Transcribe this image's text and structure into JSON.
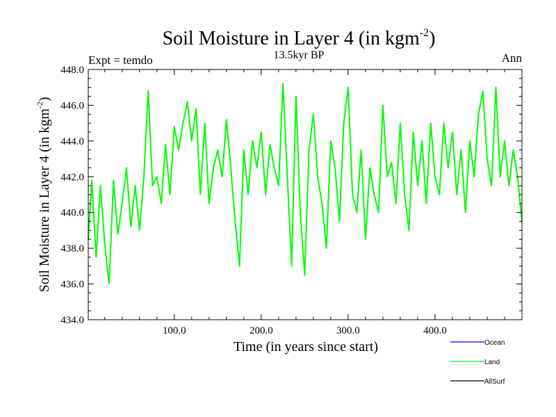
{
  "chart_data": {
    "type": "line",
    "title": "Soil Moisture in Layer 4 (in kgm",
    "title_sup": "-2",
    "title_close": ")",
    "subtitle": "13.5kyr BP",
    "left_label": "Expt = temdo",
    "right_label": "Ann",
    "xlabel": "Time (in years since start)",
    "ylabel": "Soil Moisture in Layer 4 (in kgm",
    "ylabel_sup": "-2",
    "ylabel_close": ")",
    "xlim": [
      1,
      500
    ],
    "ylim": [
      434.0,
      448.0
    ],
    "x_ticks": [
      100,
      200,
      300,
      400
    ],
    "x_tick_labels": [
      "100.0",
      "200.0",
      "300.0",
      "400.0"
    ],
    "y_ticks": [
      434,
      436,
      438,
      440,
      442,
      444,
      446,
      448
    ],
    "y_tick_labels": [
      "434.0",
      "436.0",
      "438.0",
      "440.0",
      "442.0",
      "444.0",
      "446.0",
      "448.0"
    ],
    "legend": [
      {
        "name": "Ocean",
        "color": "#0000ff"
      },
      {
        "name": "Land",
        "color": "#00ff00"
      },
      {
        "name": "AllSurf",
        "color": "#000000"
      }
    ],
    "series": [
      {
        "name": "Land",
        "color": "#00ff00",
        "x": [
          1,
          5,
          10,
          15,
          20,
          25,
          30,
          35,
          40,
          45,
          50,
          55,
          60,
          65,
          70,
          75,
          80,
          85,
          90,
          95,
          100,
          105,
          110,
          115,
          120,
          125,
          130,
          135,
          140,
          145,
          150,
          155,
          160,
          165,
          170,
          175,
          180,
          185,
          190,
          195,
          200,
          205,
          210,
          215,
          220,
          225,
          230,
          235,
          240,
          245,
          250,
          255,
          260,
          265,
          270,
          275,
          280,
          285,
          290,
          295,
          300,
          305,
          310,
          315,
          320,
          325,
          330,
          335,
          340,
          345,
          350,
          355,
          360,
          365,
          370,
          375,
          380,
          385,
          390,
          395,
          400,
          405,
          410,
          415,
          420,
          425,
          430,
          435,
          440,
          445,
          450,
          455,
          460,
          465,
          470,
          475,
          480,
          485,
          490,
          495,
          500
        ],
        "values": [
          438.5,
          441.8,
          437.5,
          441.5,
          438.2,
          436.0,
          441.8,
          438.8,
          440.5,
          442.5,
          439.2,
          441.5,
          439.0,
          442.0,
          446.8,
          441.5,
          442.0,
          440.5,
          443.8,
          441.0,
          444.8,
          443.5,
          445.0,
          446.2,
          444.0,
          445.8,
          441.0,
          445.0,
          440.5,
          442.5,
          443.5,
          442.0,
          445.2,
          442.5,
          439.5,
          437.0,
          443.5,
          441.0,
          444.0,
          442.5,
          444.5,
          441.0,
          443.8,
          442.5,
          441.5,
          447.2,
          442.0,
          437.0,
          446.5,
          440.0,
          436.5,
          443.5,
          445.5,
          442.0,
          440.5,
          438.0,
          444.0,
          442.5,
          439.5,
          445.0,
          447.0,
          441.0,
          440.0,
          443.5,
          438.5,
          442.5,
          441.0,
          440.0,
          446.0,
          442.0,
          442.8,
          440.5,
          445.0,
          441.0,
          439.0,
          444.5,
          441.5,
          444.0,
          440.5,
          445.0,
          442.0,
          441.0,
          445.0,
          442.5,
          444.5,
          441.0,
          443.5,
          440.0,
          444.0,
          442.0,
          445.5,
          446.8,
          443.0,
          441.5,
          447.0,
          442.0,
          444.0,
          441.5,
          443.5,
          442.0,
          439.5
        ]
      }
    ]
  }
}
